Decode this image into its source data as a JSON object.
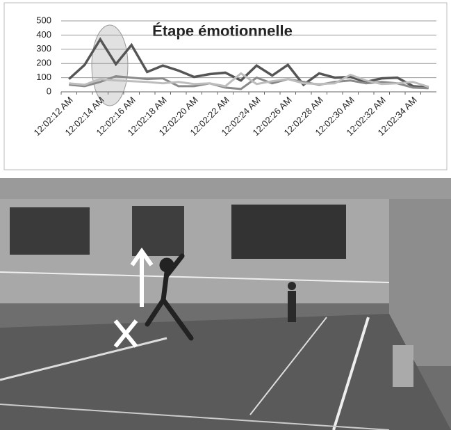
{
  "chart_data": {
    "type": "line",
    "title": "Étape émotionnelle",
    "categories": [
      "12:02:12 AM",
      null,
      "12:02:14 AM",
      null,
      "12:02:16 AM",
      null,
      "12:02:18 AM",
      null,
      "12:02:20 AM",
      null,
      "12:02:22 AM",
      null,
      "12:02:24 AM",
      null,
      "12:02:26 AM",
      null,
      "12:02:28 AM",
      null,
      "12:02:30 AM",
      null,
      "12:02:32 AM",
      null,
      "12:02:34 AM",
      null
    ],
    "series": [
      {
        "color": "#555555",
        "values": [
          90,
          190,
          370,
          195,
          330,
          140,
          185,
          150,
          105,
          125,
          135,
          80,
          185,
          115,
          190,
          50,
          130,
          100,
          105,
          70,
          95,
          100,
          40,
          30
        ]
      },
      {
        "color": "#8a8a8a",
        "values": [
          50,
          40,
          70,
          110,
          100,
          90,
          95,
          40,
          40,
          60,
          30,
          20,
          100,
          60,
          90,
          70,
          50,
          70,
          80,
          60,
          70,
          60,
          30,
          25
        ]
      },
      {
        "color": "#bdbdbd",
        "values": [
          60,
          50,
          90,
          80,
          75,
          70,
          60,
          70,
          55,
          60,
          40,
          130,
          55,
          75,
          90,
          60,
          55,
          60,
          120,
          80,
          55,
          60,
          70,
          35
        ]
      }
    ],
    "ylim": [
      0,
      500
    ],
    "yticks": [
      0,
      100,
      200,
      300,
      400,
      500
    ],
    "grid": true
  }
}
